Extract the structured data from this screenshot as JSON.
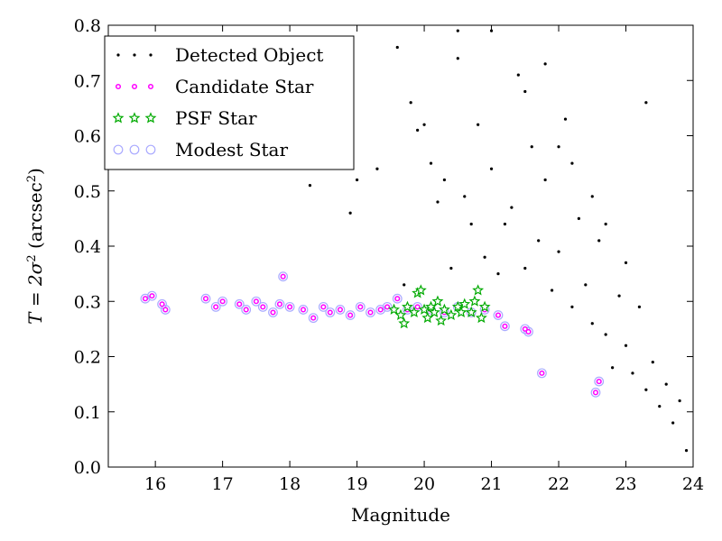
{
  "chart_data": {
    "type": "scatter",
    "xlabel": "Magnitude",
    "ylabel_parts": {
      "main": "T = 2σ",
      "sup1": "2",
      "unit": " (arcsec",
      "sup2": "2",
      "close": ")"
    },
    "xlim": [
      15.3,
      24.0
    ],
    "ylim": [
      0.0,
      0.8
    ],
    "x_ticks": [
      16,
      17,
      18,
      19,
      20,
      21,
      22,
      23,
      24
    ],
    "y_ticks": [
      0.0,
      0.1,
      0.2,
      0.3,
      0.4,
      0.5,
      0.6,
      0.7,
      0.8
    ],
    "x_tick_labels": [
      "16",
      "17",
      "18",
      "19",
      "20",
      "21",
      "22",
      "23",
      "24"
    ],
    "y_tick_labels": [
      "0.0",
      "0.1",
      "0.2",
      "0.3",
      "0.4",
      "0.5",
      "0.6",
      "0.7",
      "0.8"
    ],
    "grid": false,
    "legend_position": "top-left",
    "legend": [
      {
        "label": "Detected Object",
        "marker": "dot",
        "color": "#000000"
      },
      {
        "label": "Candidate Star",
        "marker": "small-circle",
        "color": "#ff00ff"
      },
      {
        "label": "PSF Star",
        "marker": "star",
        "color": "#00aa00"
      },
      {
        "label": "Modest Star",
        "marker": "open-circle",
        "color": "#aaaaff"
      }
    ],
    "series": [
      {
        "name": "Detected Object",
        "color": "#000000",
        "x": [
          17.9,
          18.3,
          18.9,
          19.0,
          19.3,
          19.6,
          19.7,
          19.8,
          19.9,
          20.0,
          20.1,
          20.2,
          20.3,
          20.4,
          20.5,
          20.6,
          20.7,
          20.8,
          20.9,
          21.0,
          21.1,
          21.2,
          21.3,
          21.4,
          21.5,
          21.6,
          21.7,
          21.8,
          21.9,
          22.0,
          22.1,
          22.2,
          22.3,
          22.4,
          22.5,
          22.6,
          22.7,
          22.8,
          22.9,
          23.0,
          23.1,
          23.2,
          23.3,
          23.4,
          23.5,
          23.6,
          23.7,
          23.8,
          23.9,
          21.0,
          21.5,
          22.0,
          22.5,
          23.0,
          21.8,
          22.2,
          22.7,
          23.3,
          20.5
        ],
        "y": [
          0.345,
          0.51,
          0.46,
          0.52,
          0.54,
          0.76,
          0.33,
          0.66,
          0.61,
          0.62,
          0.55,
          0.48,
          0.52,
          0.36,
          0.74,
          0.49,
          0.44,
          0.62,
          0.38,
          0.54,
          0.35,
          0.44,
          0.47,
          0.71,
          0.36,
          0.58,
          0.41,
          0.52,
          0.32,
          0.39,
          0.63,
          0.29,
          0.45,
          0.33,
          0.26,
          0.41,
          0.24,
          0.18,
          0.31,
          0.22,
          0.17,
          0.29,
          0.14,
          0.19,
          0.11,
          0.15,
          0.08,
          0.12,
          0.03,
          0.79,
          0.68,
          0.58,
          0.49,
          0.37,
          0.73,
          0.55,
          0.44,
          0.66,
          0.79
        ]
      },
      {
        "name": "Candidate Star",
        "color": "#ff00ff",
        "x": [
          15.85,
          15.95,
          16.1,
          16.15,
          16.75,
          16.9,
          17.0,
          17.25,
          17.35,
          17.5,
          17.6,
          17.75,
          17.85,
          17.9,
          18.0,
          18.2,
          18.35,
          18.5,
          18.6,
          18.75,
          18.9,
          19.05,
          19.2,
          19.35,
          19.45,
          19.6,
          19.75,
          19.9,
          20.1,
          20.3,
          20.5,
          20.7,
          20.9,
          21.1,
          21.2,
          21.5,
          21.55,
          21.75,
          22.55,
          22.6
        ],
        "y": [
          0.305,
          0.31,
          0.295,
          0.285,
          0.305,
          0.29,
          0.3,
          0.295,
          0.285,
          0.3,
          0.29,
          0.28,
          0.295,
          0.345,
          0.29,
          0.285,
          0.27,
          0.29,
          0.28,
          0.285,
          0.275,
          0.29,
          0.28,
          0.285,
          0.29,
          0.305,
          0.285,
          0.29,
          0.285,
          0.28,
          0.29,
          0.28,
          0.285,
          0.275,
          0.255,
          0.25,
          0.245,
          0.17,
          0.135,
          0.155
        ]
      },
      {
        "name": "PSF Star",
        "color": "#00aa00",
        "x": [
          19.55,
          19.65,
          19.75,
          19.85,
          19.9,
          19.95,
          20.0,
          20.05,
          20.1,
          20.15,
          20.2,
          20.3,
          20.4,
          20.5,
          20.55,
          20.6,
          20.7,
          20.8,
          20.85,
          20.9,
          20.75,
          19.7,
          20.25
        ],
        "y": [
          0.285,
          0.275,
          0.29,
          0.28,
          0.315,
          0.32,
          0.285,
          0.27,
          0.29,
          0.28,
          0.3,
          0.285,
          0.275,
          0.29,
          0.28,
          0.295,
          0.28,
          0.32,
          0.27,
          0.29,
          0.3,
          0.26,
          0.265
        ]
      },
      {
        "name": "Modest Star",
        "color": "#aaaaff",
        "x": [
          15.85,
          15.95,
          16.1,
          16.15,
          16.75,
          16.9,
          17.0,
          17.25,
          17.35,
          17.5,
          17.6,
          17.75,
          17.85,
          17.9,
          18.0,
          18.2,
          18.35,
          18.5,
          18.6,
          18.75,
          18.9,
          19.05,
          19.2,
          19.35,
          19.45,
          19.6,
          19.75,
          19.9,
          20.1,
          20.3,
          20.5,
          20.7,
          20.9,
          21.1,
          21.2,
          21.5,
          21.55,
          21.75,
          22.55,
          22.6
        ],
        "y": [
          0.305,
          0.31,
          0.295,
          0.285,
          0.305,
          0.29,
          0.3,
          0.295,
          0.285,
          0.3,
          0.29,
          0.28,
          0.295,
          0.345,
          0.29,
          0.285,
          0.27,
          0.29,
          0.28,
          0.285,
          0.275,
          0.29,
          0.28,
          0.285,
          0.29,
          0.305,
          0.285,
          0.29,
          0.285,
          0.28,
          0.29,
          0.28,
          0.285,
          0.275,
          0.255,
          0.25,
          0.245,
          0.17,
          0.135,
          0.155
        ]
      }
    ]
  }
}
